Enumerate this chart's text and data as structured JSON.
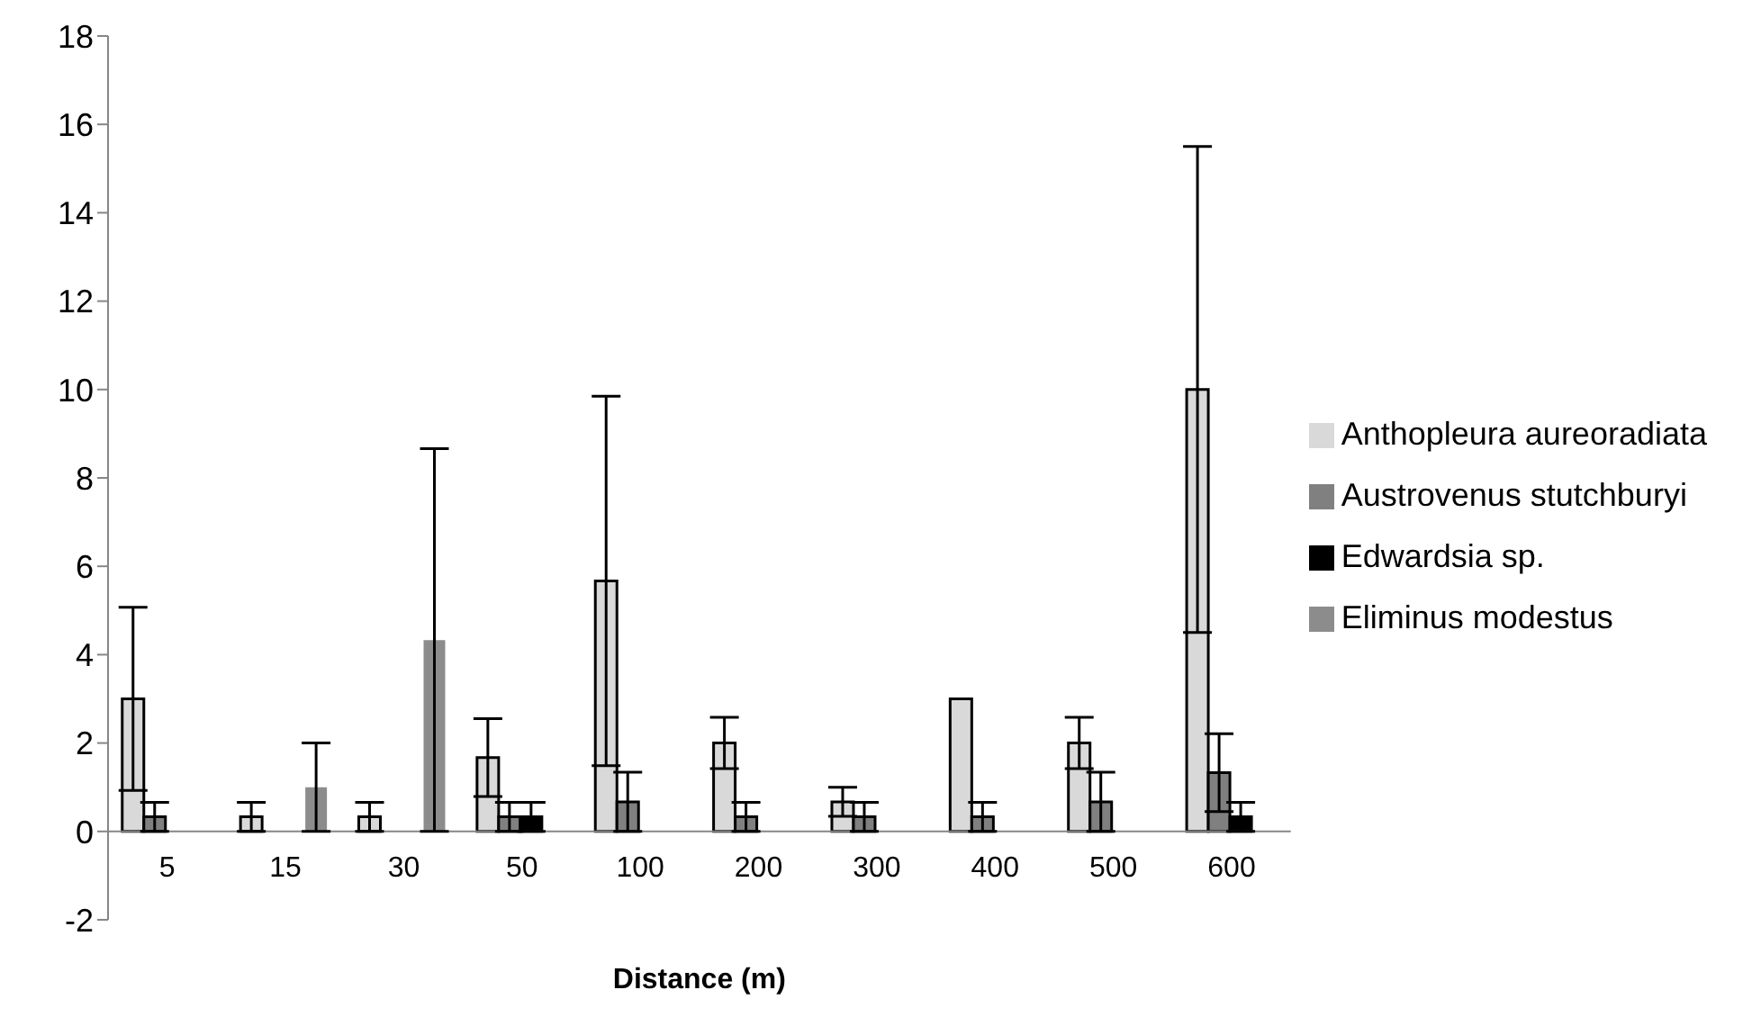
{
  "chart_data": {
    "type": "bar",
    "xlabel": "Distance (m)",
    "categories": [
      "5",
      "15",
      "30",
      "50",
      "100",
      "200",
      "300",
      "400",
      "500",
      "600"
    ],
    "series": [
      {
        "name": "Anthopleura aureoradiata",
        "color": "#d9d9d9",
        "values": [
          3,
          0.33,
          0.33,
          1.67,
          5.67,
          2,
          0.67,
          3,
          2,
          10
        ],
        "errors": [
          2.07,
          0.33,
          0.33,
          0.88,
          4.18,
          0.58,
          0.33,
          null,
          0.58,
          5.5
        ]
      },
      {
        "name": "Austrovenus stutchburyi",
        "color": "#808080",
        "values": [
          0.33,
          0,
          0,
          0.33,
          0.67,
          0.33,
          0.33,
          0.33,
          0.67,
          1.33
        ],
        "errors": [
          0.33,
          null,
          null,
          0.33,
          0.67,
          0.33,
          0.33,
          0.33,
          0.67,
          0.88
        ]
      },
      {
        "name": "Edwardsia sp.",
        "color": "#000000",
        "values": [
          0,
          0,
          0,
          0.33,
          0,
          0,
          0,
          0,
          0,
          0.33
        ],
        "errors": [
          null,
          null,
          null,
          0.33,
          null,
          null,
          null,
          null,
          null,
          0.33
        ]
      },
      {
        "name": "Eliminus modestus",
        "color": "#8c8c8c",
        "values": [
          0,
          1,
          4.33,
          0,
          0,
          0,
          0,
          0,
          0,
          0
        ],
        "errors": [
          null,
          1,
          4.33,
          null,
          null,
          null,
          null,
          null,
          null,
          null
        ]
      }
    ],
    "ylim": [
      -2,
      18
    ],
    "yticks": [
      -2,
      0,
      2,
      4,
      6,
      8,
      10,
      12,
      14,
      16,
      18
    ],
    "grid": false,
    "legend": "right"
  }
}
